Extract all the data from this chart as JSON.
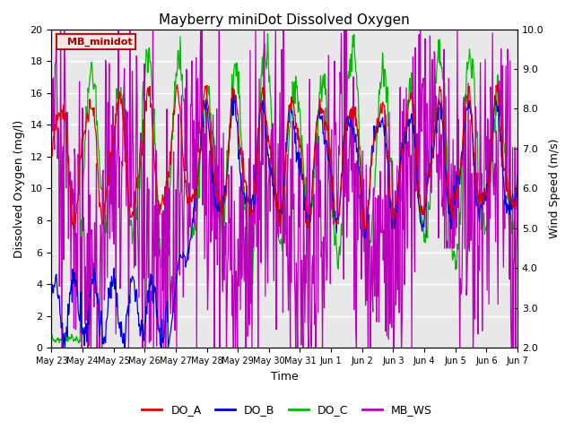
{
  "title": "Mayberry miniDot Dissolved Oxygen",
  "xlabel": "Time",
  "ylabel_left": "Dissolved Oxygen (mg/l)",
  "ylabel_right": "Wind Speed (m/s)",
  "ylim_left": [
    0,
    20
  ],
  "ylim_right": [
    2.0,
    10.0
  ],
  "x_tick_labels": [
    "May 23",
    "May 24",
    "May 25",
    "May 26",
    "May 27",
    "May 28",
    "May 29",
    "May 30",
    "May 31",
    "Jun 1",
    "Jun 2",
    "Jun 3",
    "Jun 4",
    "Jun 5",
    "Jun 6",
    "Jun 7"
  ],
  "legend_box_label": "MB_minidot",
  "legend_box_color": "#aa0000",
  "legend_box_bg": "#ffe8e8",
  "series_colors": {
    "DO_A": "#dd0000",
    "DO_B": "#0000dd",
    "DO_C": "#00bb00",
    "MB_WS": "#bb00bb"
  },
  "bg_color": "#e8e8e8",
  "grid_color": "#ffffff",
  "figsize": [
    6.4,
    4.8
  ],
  "dpi": 100
}
